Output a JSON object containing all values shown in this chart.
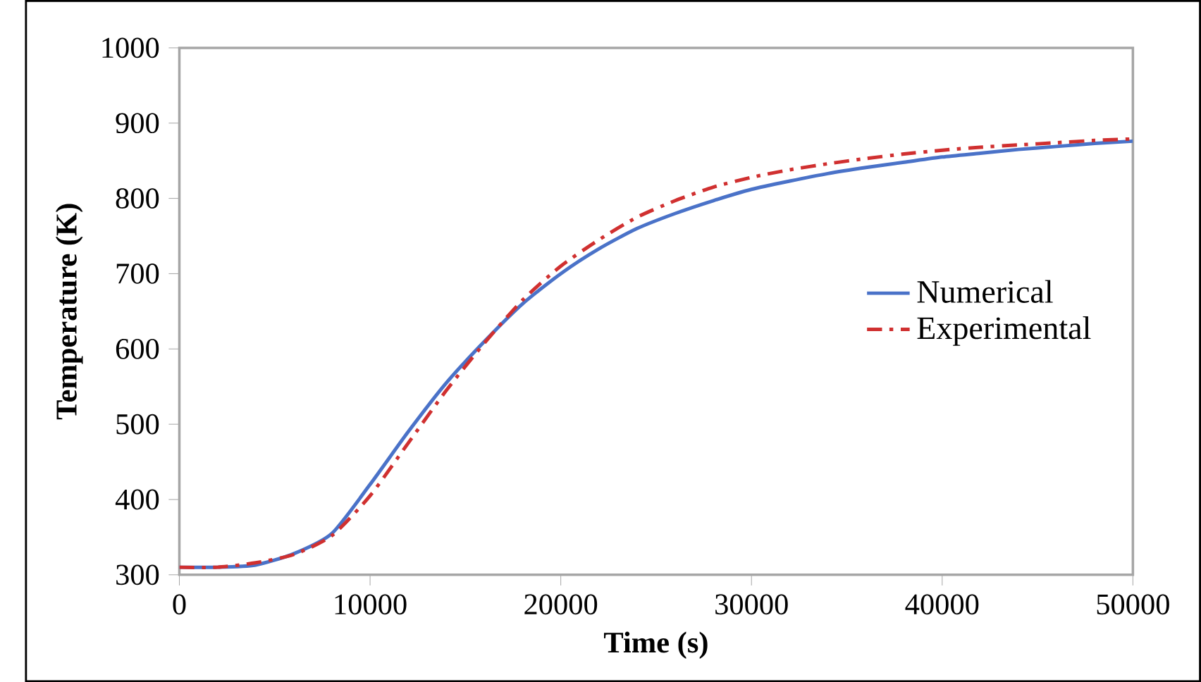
{
  "chart_data": {
    "type": "line",
    "xlabel": "Time (s)",
    "ylabel": "Temperature (K)",
    "xlim": [
      0,
      50000
    ],
    "ylim": [
      300,
      1000
    ],
    "xticks": [
      0,
      10000,
      20000,
      30000,
      40000,
      50000
    ],
    "yticks": [
      300,
      400,
      500,
      600,
      700,
      800,
      900,
      1000
    ],
    "grid": false,
    "legend": "right",
    "marker": "none",
    "series": [
      {
        "name": "Numerical",
        "color": "#4a72c8",
        "line_style": "solid",
        "x": [
          0,
          2000,
          4000,
          6000,
          8000,
          10000,
          12000,
          14000,
          16000,
          18000,
          20000,
          22000,
          24000,
          26000,
          28000,
          30000,
          32000,
          34000,
          36000,
          38000,
          40000,
          42000,
          44000,
          46000,
          48000,
          50000
        ],
        "values": [
          310,
          310,
          313,
          328,
          355,
          420,
          490,
          555,
          610,
          660,
          700,
          733,
          760,
          780,
          797,
          812,
          823,
          833,
          841,
          848,
          855,
          860,
          865,
          869,
          873,
          876
        ]
      },
      {
        "name": "Experimental",
        "color": "#d03030",
        "line_style": "dashed",
        "x": [
          0,
          2000,
          4000,
          6000,
          8000,
          10000,
          12000,
          14000,
          16000,
          18000,
          20000,
          22000,
          24000,
          26000,
          28000,
          30000,
          32000,
          34000,
          36000,
          38000,
          40000,
          42000,
          44000,
          46000,
          48000,
          50000
        ],
        "values": [
          310,
          310,
          316,
          327,
          352,
          405,
          475,
          545,
          608,
          665,
          710,
          745,
          775,
          797,
          815,
          828,
          838,
          846,
          853,
          859,
          864,
          868,
          871,
          874,
          877,
          879
        ]
      }
    ]
  }
}
